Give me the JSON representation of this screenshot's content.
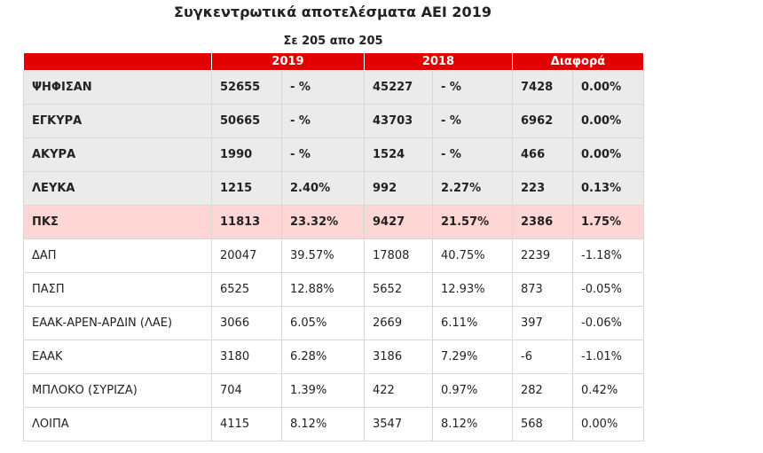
{
  "header": {
    "title": "Συγκεντρωτικά αποτελέσματα ΑΕΙ 2019",
    "subtitle": "Σε 205 απο 205"
  },
  "table": {
    "columns": [
      "2019",
      "2018",
      "Διαφορά"
    ],
    "rows": [
      [
        "ΨΗΦΙΣΑΝ",
        "52655",
        "- %",
        "45227",
        "- %",
        "7428",
        "0.00%"
      ],
      [
        "ΕΓΚΥΡΑ",
        "50665",
        "- %",
        "43703",
        "- %",
        "6962",
        "0.00%"
      ],
      [
        "ΑΚΥΡΑ",
        "1990",
        "- %",
        "1524",
        "- %",
        "466",
        "0.00%"
      ],
      [
        "ΛΕΥΚΑ",
        "1215",
        "2.40%",
        "992",
        "2.27%",
        "223",
        "0.13%"
      ],
      [
        "ΠΚΣ",
        "11813",
        "23.32%",
        "9427",
        "21.57%",
        "2386",
        "1.75%"
      ],
      [
        "ΔΑΠ",
        "20047",
        "39.57%",
        "17808",
        "40.75%",
        "2239",
        "-1.18%"
      ],
      [
        "ΠΑΣΠ",
        "6525",
        "12.88%",
        "5652",
        "12.93%",
        "873",
        "-0.05%"
      ],
      [
        "ΕΑΑΚ-ΑΡΕΝ-ΑΡΔΙΝ (ΛΑΕ)",
        "3066",
        "6.05%",
        "2669",
        "6.11%",
        "397",
        "-0.06%"
      ],
      [
        "ΕΑΑΚ",
        "3180",
        "6.28%",
        "3186",
        "7.29%",
        "-6",
        "-1.01%"
      ],
      [
        "ΜΠΛΟΚΟ (ΣΥΡΙΖΑ)",
        "704",
        "1.39%",
        "422",
        "0.97%",
        "282",
        "0.42%"
      ],
      [
        "ΛΟΙΠΑ",
        "4115",
        "8.12%",
        "3547",
        "8.12%",
        "568",
        "0.00%"
      ]
    ]
  }
}
